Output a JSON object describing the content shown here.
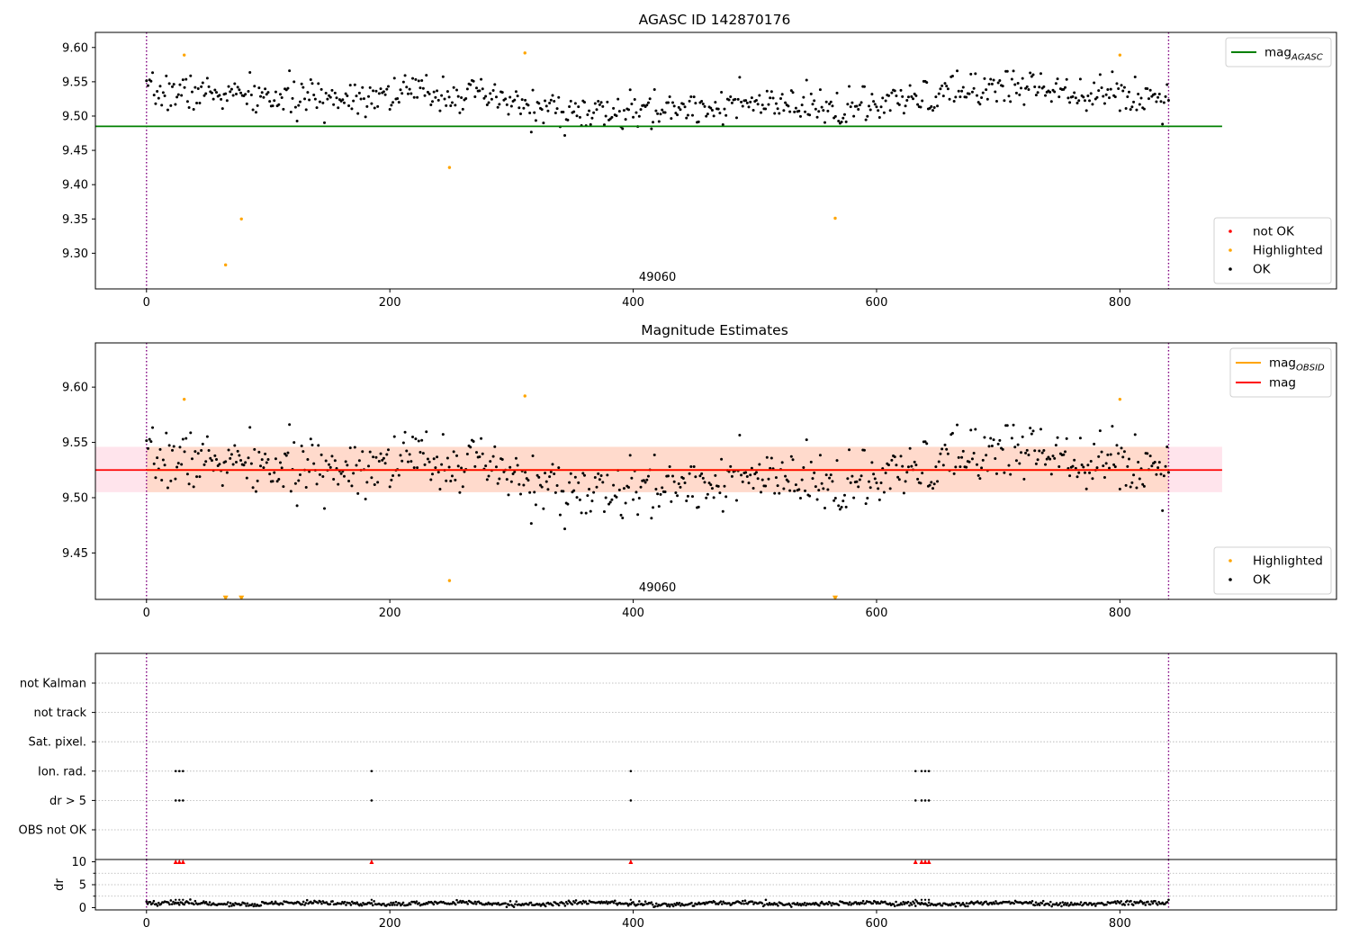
{
  "chart_data": [
    {
      "type": "scatter",
      "title": "AGASC ID 142870176",
      "xlim": [
        -42,
        978
      ],
      "ylim": [
        9.248,
        9.622
      ],
      "xticks": [
        0,
        200,
        400,
        600,
        800
      ],
      "yticks": [
        9.3,
        9.35,
        9.4,
        9.45,
        9.5,
        9.55,
        9.6
      ],
      "ytick_labels": [
        "9.30",
        "9.35",
        "9.40",
        "9.45",
        "9.50",
        "9.55",
        "9.60"
      ],
      "grid": false,
      "annotation": "49060",
      "vlines": [
        0,
        840
      ],
      "hline": {
        "label": "mag",
        "label_sub": "AGASC",
        "y": 9.485,
        "x_range": [
          -42,
          884
        ],
        "color": "#008000"
      },
      "legends": {
        "upper": {
          "position": "upper-right",
          "items": [
            {
              "label": "mag",
              "sub": "AGASC",
              "kind": "line",
              "color": "#008000"
            }
          ]
        },
        "lower": {
          "position": "lower-right",
          "items": [
            {
              "label": "not OK",
              "kind": "marker",
              "color": "#ff0000"
            },
            {
              "label": "Highlighted",
              "kind": "marker",
              "color": "#ffa500"
            },
            {
              "label": "OK",
              "kind": "marker",
              "color": "#000000"
            }
          ]
        }
      },
      "series": [
        {
          "name": "Highlighted",
          "color": "#ffa500",
          "points": [
            [
              31,
              9.589
            ],
            [
              65,
              9.283
            ],
            [
              78,
              9.35
            ],
            [
              249,
              9.425
            ],
            [
              311,
              9.592
            ],
            [
              566,
              9.351
            ],
            [
              800,
              9.589
            ]
          ]
        },
        {
          "name": "OK",
          "color": "#000000",
          "generated": true,
          "x_range": [
            0,
            840
          ],
          "mean": 9.525,
          "noise": 0.016
        }
      ]
    },
    {
      "type": "scatter",
      "title": "Magnitude Estimates",
      "xlim": [
        -42,
        978
      ],
      "ylim": [
        9.408,
        9.64
      ],
      "xticks": [
        0,
        200,
        400,
        600,
        800
      ],
      "yticks": [
        9.45,
        9.5,
        9.55,
        9.6
      ],
      "ytick_labels": [
        "9.45",
        "9.50",
        "9.55",
        "9.60"
      ],
      "grid": false,
      "annotation": "49060",
      "vlines": [
        0,
        840
      ],
      "band": {
        "y_range": [
          9.505,
          9.546
        ],
        "x_range": [
          -42,
          884
        ],
        "colors": [
          "#ffe4ec",
          "#ffdacc"
        ]
      },
      "hline": {
        "label": "mag",
        "y": 9.525,
        "x_range": [
          -42,
          884
        ],
        "color": "#ff0000"
      },
      "obsid_line": {
        "label": "mag",
        "label_sub": "OBSID",
        "y": 9.525,
        "x_range": [
          0,
          840
        ],
        "color": "#ffa500"
      },
      "legends": {
        "upper": {
          "position": "upper-right",
          "items": [
            {
              "label": "mag",
              "sub": "OBSID",
              "kind": "line",
              "color": "#ffa500"
            },
            {
              "label": "mag",
              "kind": "line",
              "color": "#ff0000"
            }
          ]
        },
        "lower": {
          "position": "lower-right",
          "items": [
            {
              "label": "Highlighted",
              "kind": "marker",
              "color": "#ffa500"
            },
            {
              "label": "OK",
              "kind": "marker",
              "color": "#000000"
            }
          ]
        }
      },
      "series": [
        {
          "name": "Highlighted",
          "color": "#ffa500",
          "points": [
            [
              31,
              9.589
            ],
            [
              249,
              9.425
            ],
            [
              311,
              9.592
            ],
            [
              800,
              9.589
            ]
          ]
        },
        {
          "name": "Highlighted (below range)",
          "color": "#ffa500",
          "marker": "triangle-down",
          "points": [
            [
              65,
              9.409
            ],
            [
              78,
              9.409
            ],
            [
              566,
              9.409
            ]
          ]
        },
        {
          "name": "OK",
          "color": "#000000",
          "generated": true,
          "x_range": [
            0,
            840
          ],
          "mean": 9.525,
          "noise": 0.016
        }
      ]
    },
    {
      "type": "scatter",
      "title": "",
      "xlim": [
        -42,
        978
      ],
      "xticks": [
        0,
        200,
        400,
        600,
        800
      ],
      "vlines": [
        0,
        840
      ],
      "flag_rows": [
        "not Kalman",
        "not track",
        "Sat. pixel.",
        "Ion. rad.",
        "dr > 5",
        "OBS not OK"
      ],
      "flags": {
        "Ion. rad.": [
          24,
          27,
          30,
          185,
          398,
          632,
          637,
          640,
          643
        ],
        "dr > 5": [
          24,
          27,
          30,
          185,
          398,
          632,
          637,
          640,
          643
        ]
      },
      "dr_panel": {
        "ylabel": "dr",
        "ylim": [
          -0.5,
          10.5
        ],
        "yticks": [
          0,
          5,
          10
        ],
        "ytick_labels": [
          "0",
          "5",
          "10"
        ],
        "clipped": {
          "color": "#ff0000",
          "y": 10,
          "x": [
            24,
            27,
            30,
            185,
            398,
            632,
            637,
            640,
            643
          ]
        },
        "series": {
          "name": "dr",
          "generated": true,
          "x_range": [
            0,
            840
          ],
          "mean": 0.9,
          "noise": 0.35
        }
      }
    }
  ]
}
